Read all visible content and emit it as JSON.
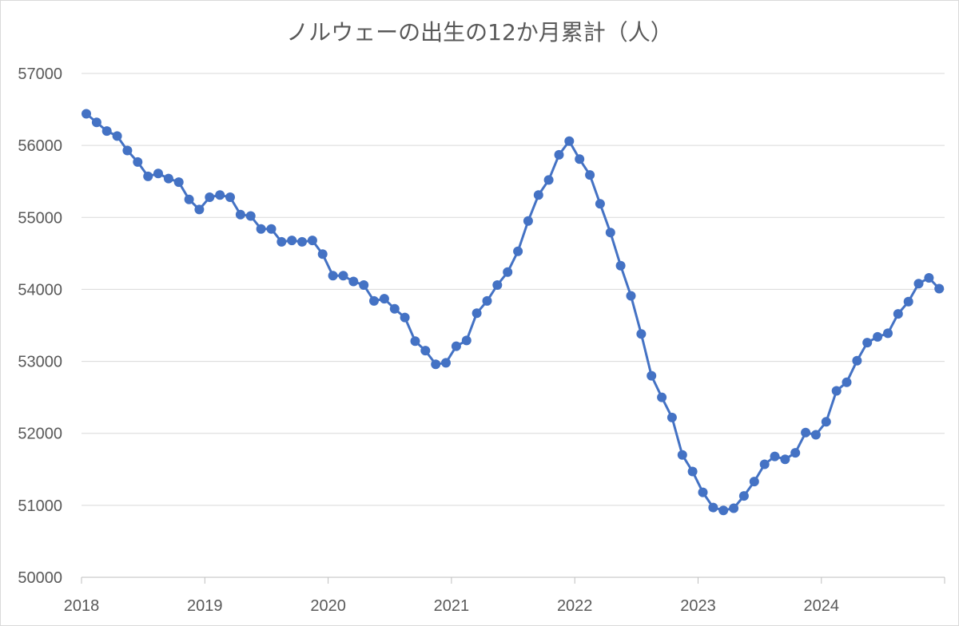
{
  "chart_data": {
    "type": "line",
    "title": "ノルウェーの出生の12か月累計（人）",
    "xlabel": "",
    "ylabel": "",
    "ylim": [
      50000,
      57000
    ],
    "yticks": [
      57000,
      56000,
      55000,
      54000,
      53000,
      52000,
      51000,
      50000
    ],
    "xticks": [
      "2018",
      "2019",
      "2020",
      "2021",
      "2022",
      "2023",
      "2024"
    ],
    "grid": true,
    "legend": "none",
    "color": "#4472C4",
    "series": [
      {
        "start": "2018-01",
        "frequency": "monthly",
        "values": [
          56440,
          56320,
          56200,
          56130,
          55930,
          55770,
          55570,
          55610,
          55540,
          55490,
          55250,
          55110,
          55280,
          55310,
          55280,
          55040,
          55020,
          54840,
          54840,
          54660,
          54680,
          54660,
          54680,
          54490,
          54190,
          54190,
          54110,
          54060,
          53840,
          53870,
          53730,
          53610,
          53280,
          53150,
          52960,
          52980,
          53210,
          53290,
          53670,
          53840,
          54060,
          54240,
          54530,
          54950,
          55310,
          55520,
          55870,
          56060,
          55810,
          55590,
          55190,
          54790,
          54330,
          53910,
          53380,
          52800,
          52500,
          52220,
          51700,
          51470,
          51180,
          50970,
          50930,
          50960,
          51130,
          51330,
          51570,
          51680,
          51640,
          51730,
          52010,
          51980,
          52160,
          52590,
          52710,
          53010,
          53260,
          53340,
          53390,
          53660,
          53830,
          54080,
          54160,
          54010
        ]
      }
    ]
  }
}
